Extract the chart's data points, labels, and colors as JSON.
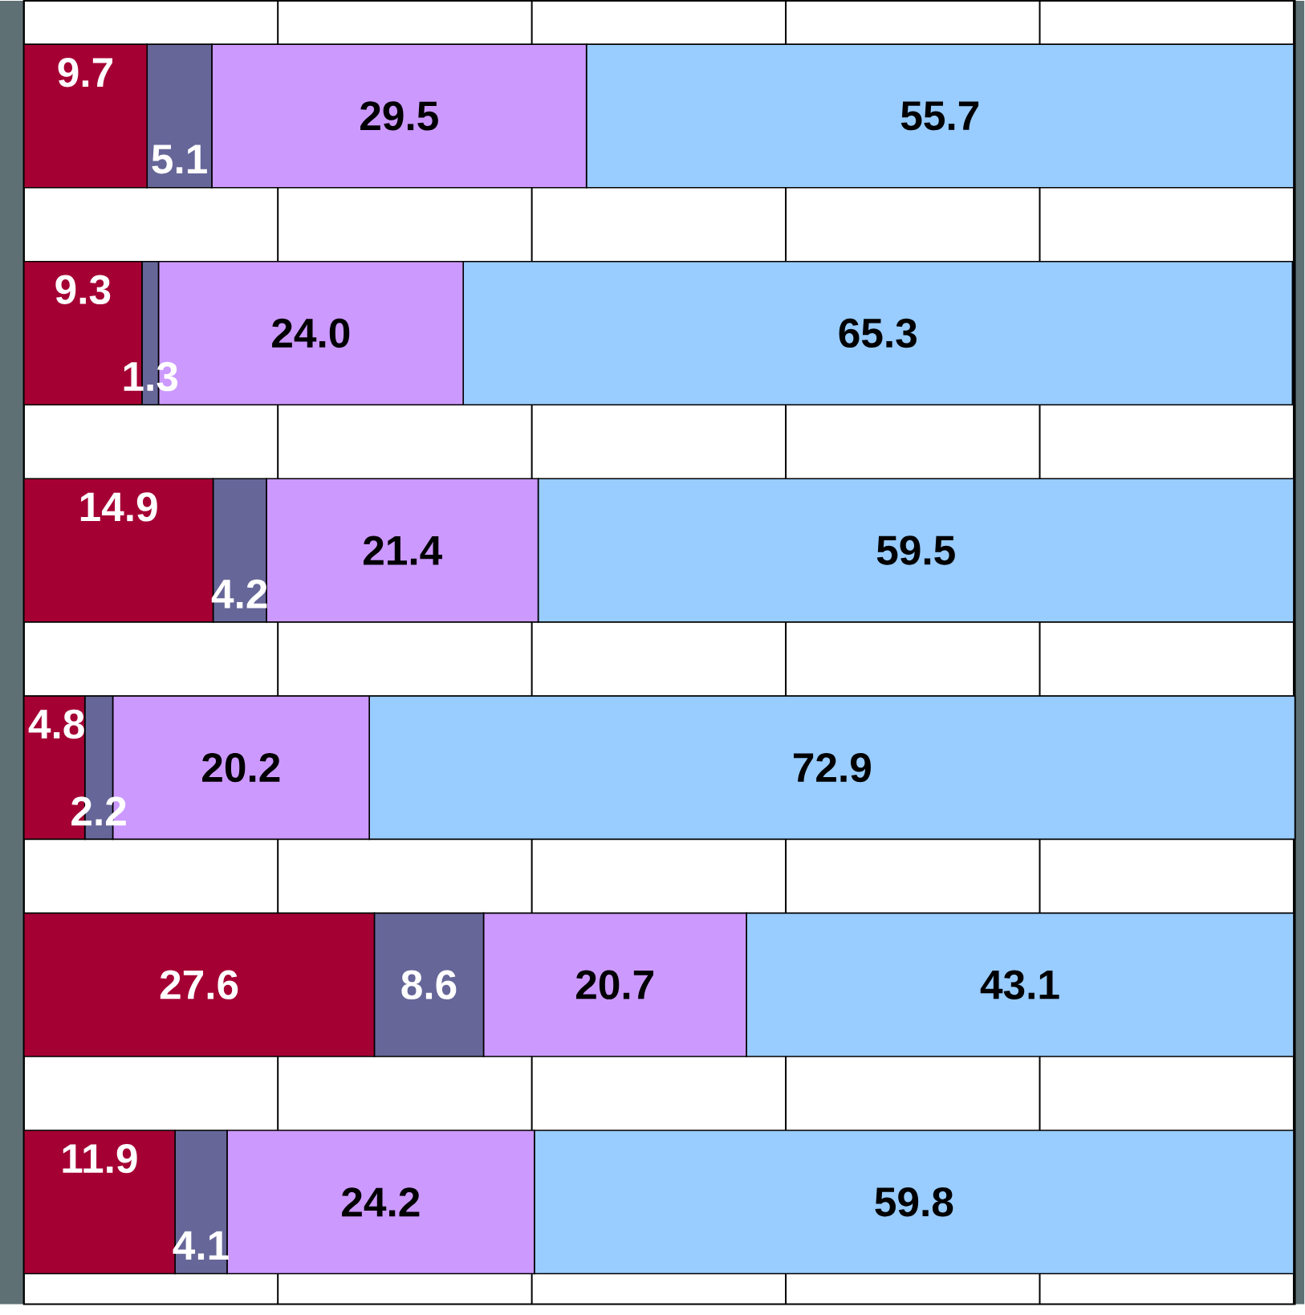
{
  "chart_data": {
    "type": "bar",
    "orientation": "horizontal",
    "stacked": true,
    "categories": [
      null,
      null,
      null,
      null,
      null,
      null
    ],
    "series": [
      {
        "color": "#a50034",
        "values": [
          9.7,
          9.3,
          14.9,
          4.8,
          27.6,
          11.9
        ],
        "value_labels": [
          "9.7",
          "9.3",
          "14.9",
          "4.8",
          "27.6",
          "11.9"
        ]
      },
      {
        "color": "#666699",
        "values": [
          5.1,
          1.3,
          4.2,
          2.2,
          8.6,
          4.1
        ],
        "value_labels": [
          "5.1",
          "1.3",
          "4.2",
          "2.2",
          "8.6",
          "4.1"
        ]
      },
      {
        "color": "#cc99ff",
        "values": [
          29.5,
          24.0,
          21.4,
          20.2,
          20.7,
          24.2
        ],
        "value_labels": [
          "29.5",
          "24.0",
          "21.4",
          "20.2",
          "20.7",
          "24.2"
        ]
      },
      {
        "color": "#99ccff",
        "values": [
          55.7,
          65.3,
          59.5,
          72.9,
          43.1,
          59.8
        ],
        "value_labels": [
          "55.7",
          "65.3",
          "59.5",
          "72.9",
          "43.1",
          "59.8"
        ]
      }
    ],
    "grid": "x",
    "tick_labels": false
  }
}
